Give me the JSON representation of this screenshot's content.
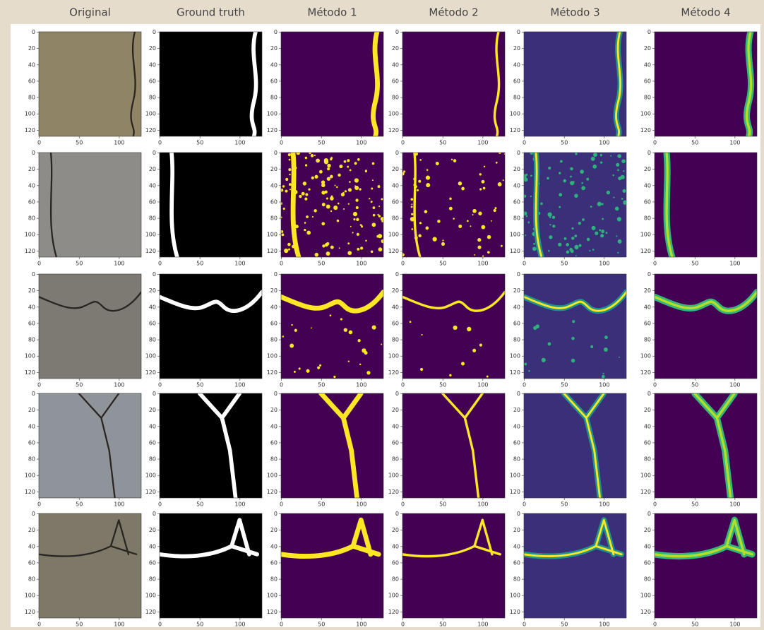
{
  "header": {
    "columns": [
      "Original",
      "Ground truth",
      "Método 1",
      "Método 2",
      "Método 3",
      "Método 4"
    ]
  },
  "panel_axes": {
    "xlim": [
      -0.5,
      127.5
    ],
    "ylim": [
      -0.5,
      127.5
    ],
    "xticks": [
      0,
      50,
      100
    ],
    "yticks": [
      0,
      20,
      40,
      60,
      80,
      100,
      120
    ]
  },
  "rows": 5
}
